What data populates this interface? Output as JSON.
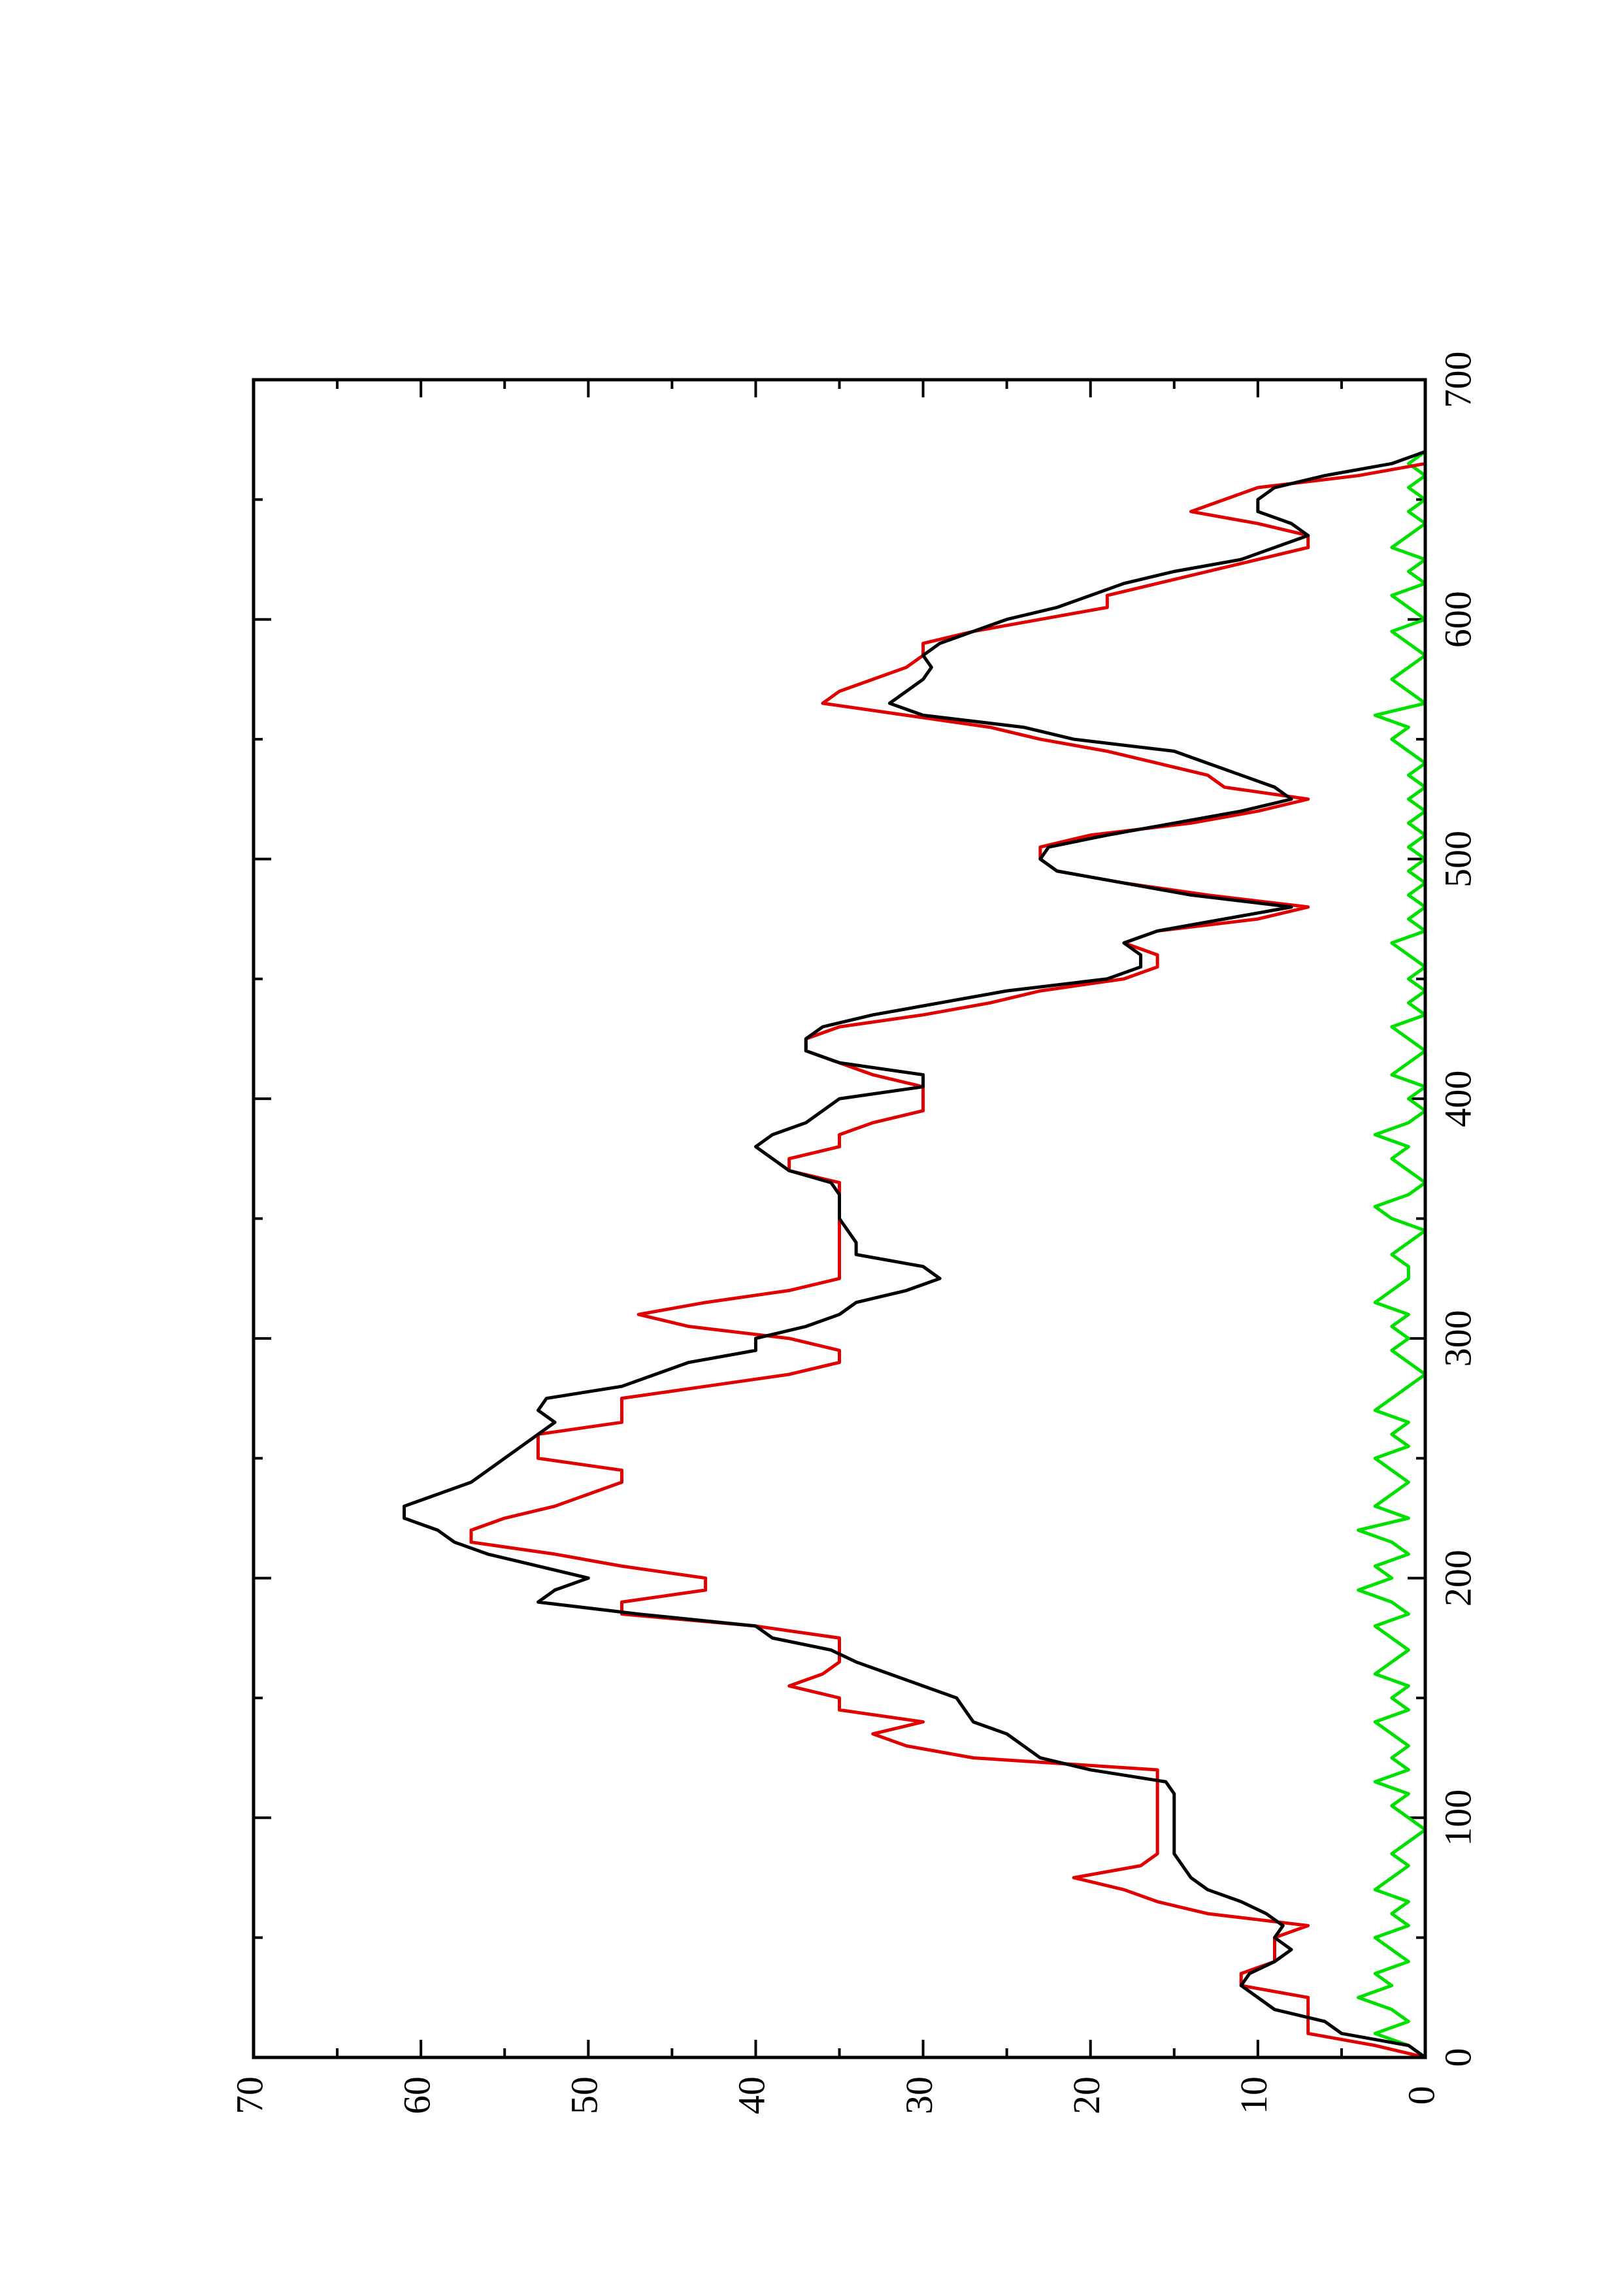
{
  "chart_data": {
    "type": "line",
    "x": [
      0,
      5,
      10,
      15,
      20,
      25,
      30,
      35,
      40,
      45,
      50,
      55,
      60,
      65,
      70,
      75,
      80,
      85,
      90,
      95,
      100,
      105,
      110,
      115,
      120,
      125,
      130,
      135,
      140,
      145,
      150,
      155,
      160,
      165,
      170,
      175,
      180,
      185,
      190,
      195,
      200,
      205,
      210,
      215,
      220,
      225,
      230,
      235,
      240,
      245,
      250,
      255,
      260,
      265,
      270,
      275,
      280,
      285,
      290,
      295,
      300,
      305,
      310,
      315,
      320,
      325,
      330,
      335,
      340,
      345,
      350,
      355,
      360,
      365,
      370,
      375,
      380,
      385,
      390,
      395,
      400,
      405,
      410,
      415,
      420,
      425,
      430,
      435,
      440,
      445,
      450,
      455,
      460,
      465,
      470,
      475,
      480,
      485,
      490,
      495,
      500,
      505,
      510,
      515,
      520,
      525,
      530,
      535,
      540,
      545,
      550,
      555,
      560,
      565,
      570,
      575,
      580,
      585,
      590,
      595,
      600,
      605,
      610,
      615,
      620,
      625,
      630,
      635,
      640,
      645,
      650,
      655,
      660,
      665,
      670
    ],
    "series": [
      {
        "color": "#000000",
        "values": [
          0,
          1,
          5,
          6,
          9,
          10,
          11,
          10.5,
          9,
          8,
          9,
          8.5,
          9.5,
          11,
          13,
          14,
          14.5,
          15,
          15,
          15,
          15,
          15,
          15,
          15.5,
          20,
          23,
          24,
          25,
          27,
          27.5,
          28,
          30,
          32,
          34,
          35.5,
          39,
          40,
          47,
          53,
          52,
          50,
          53,
          56,
          58,
          59,
          61,
          61,
          59,
          57,
          56,
          55,
          54,
          53,
          52,
          53,
          52.5,
          48,
          46,
          44,
          40,
          40,
          37,
          35,
          34,
          31,
          29,
          30,
          34,
          34,
          34.5,
          35,
          35,
          35,
          35.5,
          38,
          39,
          40,
          39,
          37,
          36,
          35,
          30,
          30,
          35,
          37,
          37,
          36,
          33,
          29,
          25,
          19,
          17,
          17,
          18,
          16,
          12,
          8,
          14,
          18,
          22,
          23,
          22.5,
          19,
          15,
          11,
          8,
          9,
          11,
          13,
          15,
          21,
          24,
          30,
          32,
          31,
          30,
          29.5,
          30,
          29,
          27,
          25,
          22,
          20,
          18,
          15,
          11,
          9,
          7,
          8,
          10,
          10,
          9,
          6,
          2,
          0
        ]
      },
      {
        "color": "#e00000",
        "values": [
          0,
          3,
          7,
          7,
          7,
          7,
          11,
          11,
          9,
          9,
          9,
          7,
          13,
          16,
          18,
          21,
          17,
          16,
          16,
          16,
          16,
          16,
          16,
          16,
          16,
          27,
          31,
          33,
          30,
          35,
          35,
          38,
          36,
          35,
          35,
          35,
          40,
          48,
          48,
          43,
          43,
          48,
          52,
          57,
          57,
          55,
          52,
          50,
          48,
          48,
          53,
          53,
          53,
          48,
          48,
          48,
          43,
          38,
          35,
          35,
          38,
          44,
          47,
          43,
          38,
          35,
          35,
          35,
          35,
          35,
          35,
          35,
          35,
          35,
          38,
          38,
          35,
          35,
          33,
          30,
          30,
          30,
          33,
          35,
          37,
          37,
          35,
          30,
          26,
          23,
          18,
          16,
          16,
          18,
          16,
          10,
          7,
          13,
          18,
          22,
          23,
          23,
          20,
          14,
          10,
          7,
          12,
          13,
          16,
          19,
          23,
          26,
          31,
          36,
          35,
          33,
          31,
          30,
          30,
          27,
          23,
          19,
          19,
          16,
          13,
          10,
          7,
          7,
          10,
          14,
          12,
          10,
          4,
          0,
          0
        ]
      },
      {
        "color": "#00e000",
        "values": [
          0,
          1,
          3,
          1,
          2,
          4,
          2,
          3,
          1,
          2,
          3,
          1,
          2,
          1,
          3,
          2,
          1,
          2,
          1,
          0,
          1,
          2,
          1,
          3,
          1,
          2,
          1,
          2,
          3,
          1,
          2,
          1,
          3,
          2,
          1,
          2,
          3,
          1,
          2,
          4,
          2,
          3,
          1,
          2,
          4,
          1,
          3,
          2,
          1,
          2,
          3,
          1,
          2,
          1,
          3,
          2,
          1,
          0,
          1,
          2,
          1,
          2,
          1,
          3,
          2,
          1,
          1,
          2,
          1,
          0,
          2,
          3,
          1,
          0,
          1,
          2,
          1,
          3,
          1,
          0,
          1,
          0,
          2,
          1,
          0,
          1,
          2,
          0,
          1,
          0,
          1,
          0,
          1,
          2,
          0,
          1,
          0,
          1,
          0,
          1,
          0,
          1,
          0,
          1,
          0,
          1,
          0,
          1,
          0,
          1,
          2,
          1,
          3,
          0,
          1,
          2,
          1,
          0,
          1,
          2,
          0,
          1,
          2,
          0,
          1,
          0,
          2,
          1,
          0,
          1,
          0,
          1,
          0,
          1,
          0
        ]
      }
    ],
    "xlim": [
      0,
      700
    ],
    "xticks": [
      0,
      100,
      200,
      300,
      400,
      500,
      600,
      700
    ],
    "ylim": [
      0,
      70
    ],
    "yticks": [
      0,
      10,
      20,
      30,
      40,
      50,
      60,
      70
    ]
  }
}
